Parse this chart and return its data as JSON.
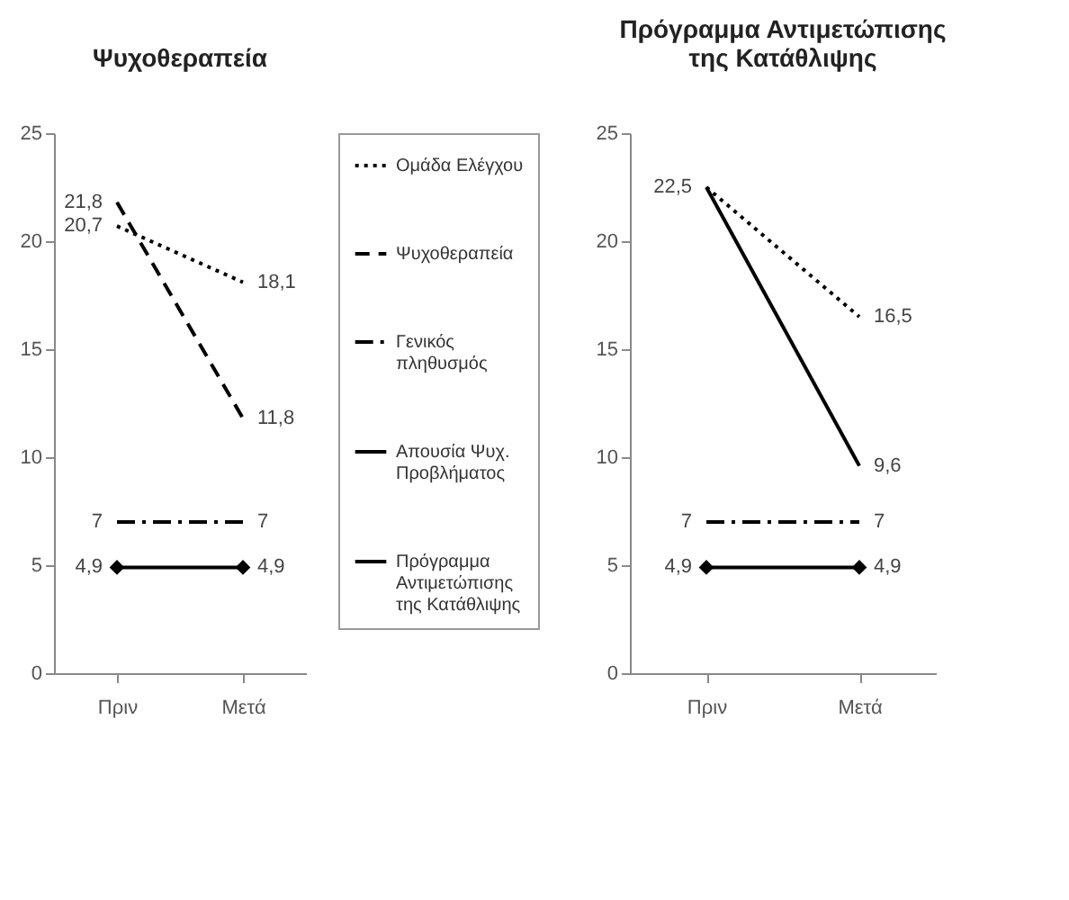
{
  "chart_data": [
    {
      "type": "line",
      "title": "Ψυχοθεραπεία",
      "categories": [
        "Πριν",
        "Μετά"
      ],
      "ylim": [
        0,
        25
      ],
      "yticks": [
        0,
        5,
        10,
        15,
        20,
        25
      ],
      "legend": "right",
      "series": [
        {
          "name": "Ομάδα Ελέγχου",
          "color": "#000000",
          "line_style": "dotted",
          "values": [
            20.7,
            18.1
          ],
          "value_labels": [
            "20,7",
            "18,1"
          ]
        },
        {
          "name": "Ψυχοθεραπεία",
          "color": "#000000",
          "line_style": "dashed",
          "values": [
            21.8,
            11.8
          ],
          "value_labels": [
            "21,8",
            "11,8"
          ]
        },
        {
          "name": "Γενικός πληθυσμός",
          "color": "#000000",
          "line_style": "dashdot",
          "values": [
            7,
            7
          ],
          "value_labels": [
            "7",
            "7"
          ]
        },
        {
          "name": "Απουσία Ψυχ. Προβλήματος",
          "color": "#000000",
          "line_style": "solid",
          "marker": "diamond",
          "values": [
            4.9,
            4.9
          ],
          "value_labels": [
            "4,9",
            "4,9"
          ]
        },
        {
          "name": "Πρόγραμμα Αντιμετώπισης της Κατάθλιψης",
          "color": "#000000",
          "line_style": "solid",
          "values": [
            null,
            null
          ]
        }
      ]
    },
    {
      "type": "line",
      "title": "Πρόγραμμα Αντιμετώπισης της Κατάθλιψης",
      "categories": [
        "Πριν",
        "Μετά"
      ],
      "ylim": [
        0,
        25
      ],
      "yticks": [
        0,
        5,
        10,
        15,
        20,
        25
      ],
      "legend": false,
      "series": [
        {
          "color": "#000000",
          "line_style": "dotted",
          "values": [
            22.5,
            16.5
          ],
          "value_labels": [
            "22,5",
            "16,5"
          ]
        },
        {
          "color": "#000000",
          "line_style": "dashdot",
          "values": [
            7,
            7
          ],
          "value_labels": [
            "7",
            "7"
          ]
        },
        {
          "color": "#000000",
          "line_style": "solid",
          "marker": "diamond",
          "values": [
            4.9,
            4.9
          ],
          "value_labels": [
            "4,9",
            "4,9"
          ]
        },
        {
          "color": "#000000",
          "line_style": "solid",
          "values": [
            22.5,
            9.6
          ],
          "value_labels": [
            null,
            "9,6"
          ]
        }
      ]
    }
  ]
}
